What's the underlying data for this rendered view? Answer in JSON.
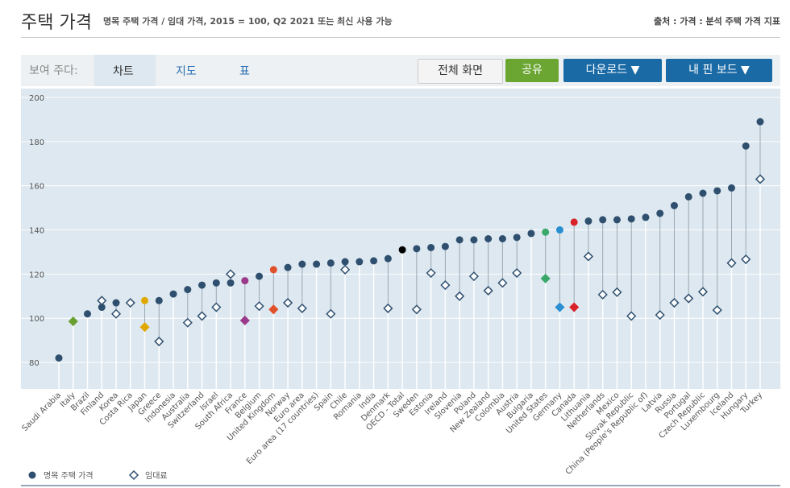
{
  "header": {
    "title": "주택 가격",
    "subtitle": "명목 주택 가격 / 임대 가격, 2015 = 100, Q2 2021 또는 최신 사용 가능",
    "source": "출처 : 가격 : 분석 주택 가격 지표"
  },
  "toolbar": {
    "show_label": "보여 주다:",
    "tabs": [
      "차트",
      "지도",
      "표"
    ],
    "buttons": [
      "전체 화면",
      "공유",
      "다운로드 ▼",
      "내 핀 보드 ▼"
    ]
  },
  "chart_data": {
    "type": "dot",
    "categories": [
      "Saudi Arabia",
      "Italy",
      "Brazil",
      "Finland",
      "Korea",
      "Costa Rica",
      "Japan",
      "Greece",
      "Indonesia",
      "Australia",
      "Switzerland",
      "Israel",
      "South Africa",
      "France",
      "Belgium",
      "United Kingdom",
      "Norway",
      "Euro area",
      "Euro area (17 countries)",
      "Spain",
      "Chile",
      "Romania",
      "India",
      "Denmark",
      "OECD - Total",
      "Sweden",
      "Estonia",
      "Ireland",
      "Slovenia",
      "Poland",
      "New Zealand",
      "Colombia",
      "Austria",
      "Bulgaria",
      "United States",
      "Germany",
      "Canada",
      "Lithuania",
      "Netherlands",
      "Mexico",
      "Slovak Republic",
      "China (People's Republic of)",
      "Latvia",
      "Russia",
      "Portugal",
      "Czech Republic",
      "Luxembourg",
      "Iceland",
      "Hungary",
      "Turkey"
    ],
    "highlight_colors": [
      null,
      "#6aa031",
      null,
      null,
      null,
      null,
      "#e0a800",
      null,
      null,
      null,
      null,
      null,
      null,
      "#9b3a8a",
      null,
      "#e0502a",
      null,
      null,
      null,
      null,
      null,
      null,
      null,
      null,
      "#000000",
      null,
      null,
      null,
      null,
      null,
      null,
      null,
      null,
      null,
      "#3aa86b",
      "#2a8fd0",
      "#d9232a",
      null,
      null,
      null,
      null,
      null,
      null,
      null,
      null,
      null,
      null,
      null,
      null,
      null
    ],
    "series": [
      {
        "name": "명목 주택 가격",
        "color": "#2f4f6f",
        "marker": "circle",
        "values": [
          82,
          null,
          102,
          105,
          107,
          null,
          108,
          108,
          111,
          113,
          115,
          116,
          116,
          117,
          119,
          122,
          123,
          124.5,
          124.5,
          125,
          125.6,
          125.6,
          126,
          127,
          131,
          131.5,
          132,
          132.5,
          135.5,
          135.5,
          136,
          136,
          136.6,
          138.4,
          139,
          140,
          143.5,
          144,
          144.6,
          144.6,
          145,
          145.7,
          147.5,
          151,
          155,
          156.6,
          157.7,
          159,
          178,
          189
        ]
      },
      {
        "name": "임대료",
        "color": "#2f4f6f",
        "marker": "diamond",
        "values": [
          null,
          98.6,
          null,
          108,
          102,
          107,
          96,
          89.5,
          null,
          98,
          101,
          105,
          120,
          99,
          105.5,
          104,
          107,
          104.5,
          null,
          102,
          122,
          null,
          null,
          104.5,
          null,
          104,
          120.5,
          115,
          110,
          119,
          112.5,
          116,
          120.5,
          null,
          118,
          105,
          105,
          128,
          110.7,
          111.8,
          101,
          null,
          101.5,
          107,
          109,
          112,
          103.7,
          125,
          126.7,
          163
        ]
      }
    ],
    "ylim": [
      68,
      204
    ],
    "yticks": [
      80,
      100,
      120,
      140,
      160,
      180,
      200
    ],
    "grid": true
  }
}
